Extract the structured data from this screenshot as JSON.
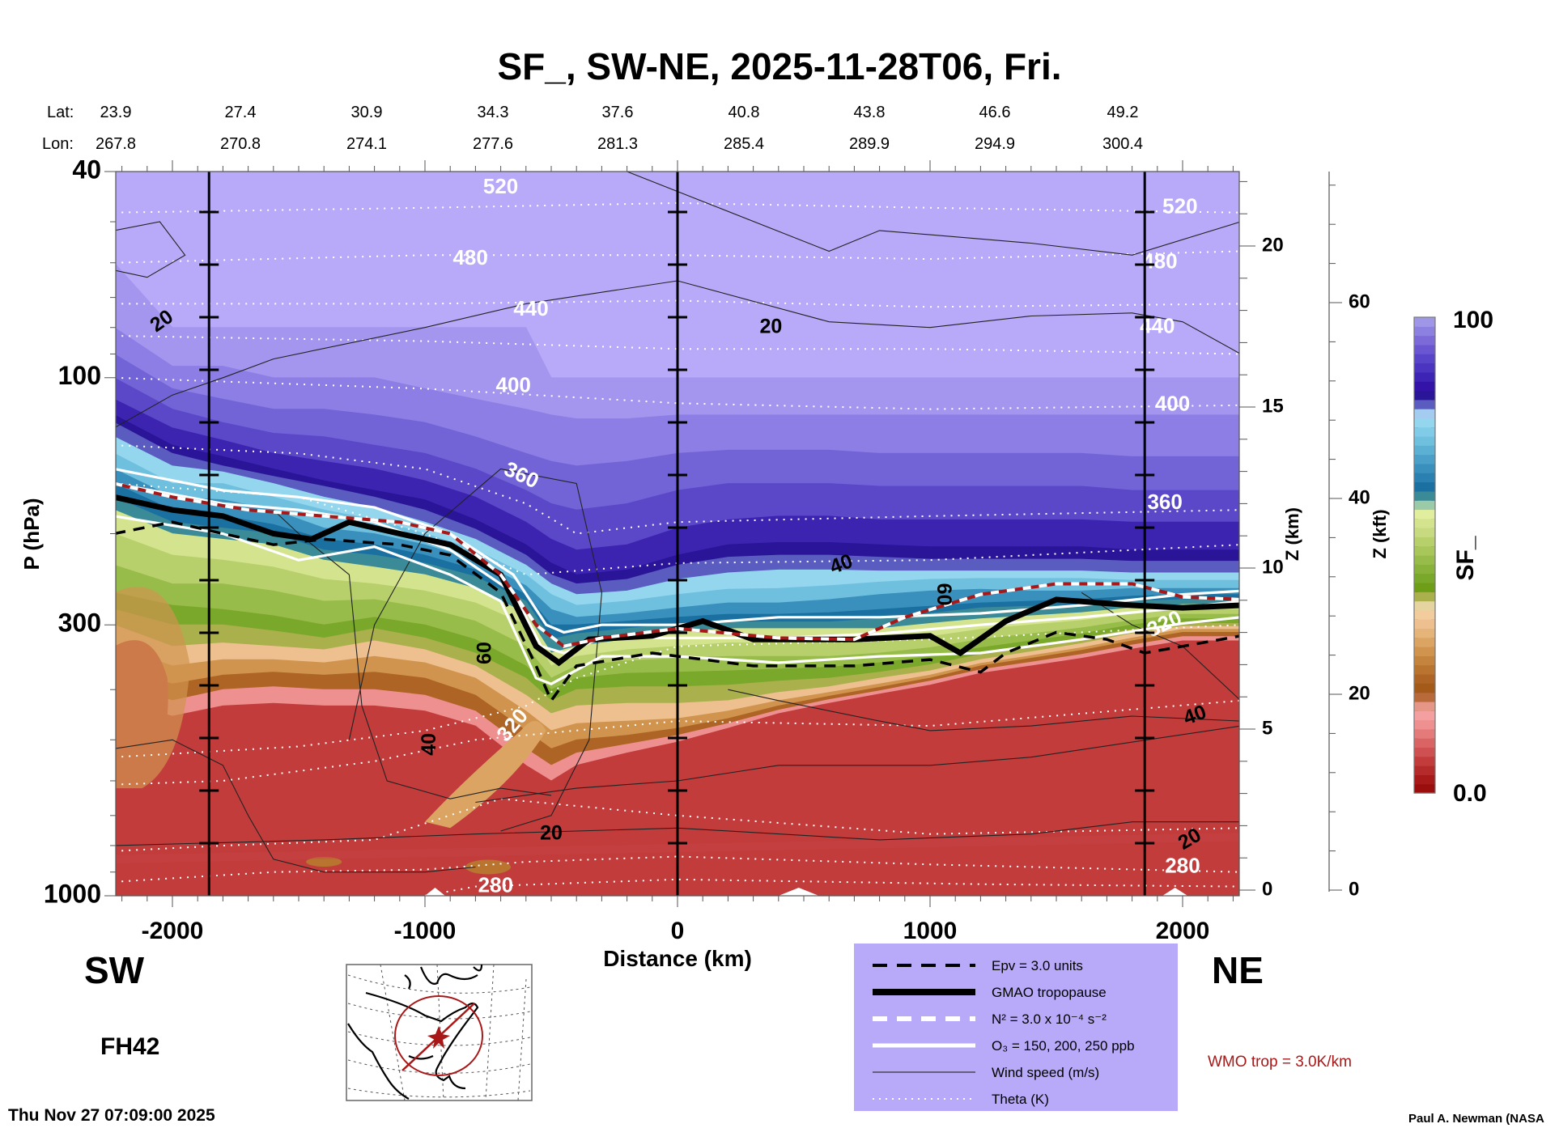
{
  "chart_data": {
    "type": "heatmap",
    "title": "SF_, SW-NE, 2025-11-28T06, Fri.",
    "xlabel": "Distance (km)",
    "ylabel": "P (hPa)",
    "y2label": "Z (km)",
    "y3label": "Z (kft)",
    "xlim": [
      -2220,
      2220
    ],
    "ylim_hPa": [
      1000,
      40
    ],
    "y_scale": "log",
    "x_ticks": [
      -2000,
      -1000,
      0,
      1000,
      2000
    ],
    "x_tick_labels": [
      "-2000",
      "-1000",
      "0",
      "1000",
      "2000"
    ],
    "y_ticks_hPa": [
      40,
      100,
      300,
      1000
    ],
    "y_tick_labels": [
      "40",
      "100",
      "300",
      "1000"
    ],
    "z_km_ticks": [
      0,
      5,
      10,
      15,
      20
    ],
    "z_km_tick_labels": [
      "0",
      "5",
      "10",
      "15",
      "20"
    ],
    "z_kft_ticks": [
      0,
      20,
      40,
      60
    ],
    "z_kft_tick_labels": [
      "0",
      "20",
      "40",
      "60"
    ],
    "vertical_marker_lines_km": [
      -1855,
      0,
      1850
    ],
    "lat_label": "Lat:",
    "lon_label": "Lon:",
    "lat_values": [
      "23.9",
      "27.4",
      "30.9",
      "34.3",
      "37.6",
      "40.8",
      "43.8",
      "46.6",
      "49.2"
    ],
    "lon_values": [
      "267.8",
      "270.8",
      "274.1",
      "277.6",
      "281.3",
      "285.4",
      "289.9",
      "294.9",
      "300.4"
    ],
    "colorbar": {
      "label": "SF_",
      "min_label": "0.0",
      "max_label": "100",
      "range": [
        0,
        100
      ],
      "colors": [
        "#9a0e0e",
        "#a81a1a",
        "#b52a2a",
        "#c23c3c",
        "#cf5050",
        "#da6464",
        "#e47a7a",
        "#ee9090",
        "#f4a0a0",
        "#e69686",
        "#b96a3a",
        "#a45a18",
        "#ad6424",
        "#b9742f",
        "#c5843e",
        "#d0944e",
        "#dba462",
        "#e4b478",
        "#eec090",
        "#f2cc9c",
        "#e6d4a0",
        "#aab04c",
        "#6e9e18",
        "#7aa82a",
        "#88b23a",
        "#98bc4a",
        "#a8c65a",
        "#b8d06c",
        "#c8da80",
        "#d4e48e",
        "#e0ee9e",
        "#9acaa8",
        "#3a8a98",
        "#1a70a0",
        "#2a80b0",
        "#3a90bc",
        "#4aa0c8",
        "#5cb0d4",
        "#6ec0de",
        "#80cce8",
        "#94d6ee",
        "#a4ccf0",
        "#5a5cc0",
        "#2a1498",
        "#3414a8",
        "#3e24b4",
        "#4a34c0",
        "#5844c8",
        "#6a56d0",
        "#7c6ad8",
        "#8c80e0",
        "#a096e8"
      ]
    },
    "theta_labels": [
      "520",
      "480",
      "440",
      "400",
      "360",
      "320",
      "280"
    ],
    "wind_labels": [
      "20",
      "40",
      "60"
    ],
    "direction_left": "SW",
    "direction_right": "NE",
    "forecast_hour": "FH42",
    "legend": [
      {
        "label": "Epv = 3.0 units",
        "style": "black-dashed"
      },
      {
        "label": "GMAO tropopause",
        "style": "black-thick"
      },
      {
        "label": "N² = 3.0 x 10⁻⁴ s⁻²",
        "style": "white-dashed"
      },
      {
        "label": "O₃ = 150, 200, 250 ppb",
        "style": "white-solid"
      },
      {
        "label": "Wind speed (m/s)",
        "style": "black-thin"
      },
      {
        "label": "Theta (K)",
        "style": "white-dotted"
      }
    ],
    "legend_bg": "#b8aaf8",
    "wmo_note": "WMO trop = 3.0K/km",
    "wmo_color": "#a81818"
  },
  "footer": {
    "timestamp": "Thu Nov 27 07:09:00 2025",
    "credit": "Paul A. Newman (NASA"
  }
}
